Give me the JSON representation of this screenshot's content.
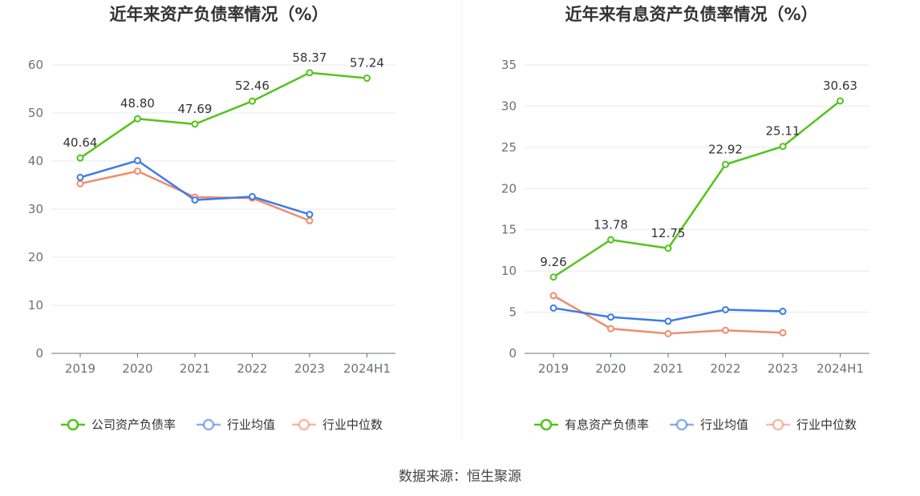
{
  "chart_data": [
    {
      "type": "line",
      "title": "近年来资产负债率情况（%）",
      "categories": [
        "2019",
        "2020",
        "2021",
        "2022",
        "2023",
        "2024H1"
      ],
      "ylim": [
        0,
        60
      ],
      "yticks": [
        0,
        10,
        20,
        30,
        40,
        50,
        60
      ],
      "grid": true,
      "legend_position": "bottom",
      "series": [
        {
          "name": "公司资产负债率",
          "color": "#52c41a",
          "values": [
            40.64,
            48.8,
            47.69,
            52.46,
            58.37,
            57.24
          ],
          "labels": [
            "40.64",
            "48.80",
            "47.69",
            "52.46",
            "58.37",
            "57.24"
          ]
        },
        {
          "name": "行业均值",
          "color": "#3d7be6",
          "values": [
            36.6,
            40.1,
            31.9,
            32.6,
            28.9,
            null
          ]
        },
        {
          "name": "行业中位数",
          "color": "#f08c6c",
          "values": [
            35.3,
            37.9,
            32.5,
            32.3,
            27.6,
            null
          ]
        }
      ]
    },
    {
      "type": "line",
      "title": "近年来有息资产负债率情况（%）",
      "categories": [
        "2019",
        "2020",
        "2021",
        "2022",
        "2023",
        "2024H1"
      ],
      "ylim": [
        0,
        35
      ],
      "yticks": [
        0,
        5,
        10,
        15,
        20,
        25,
        30,
        35
      ],
      "grid": true,
      "legend_position": "bottom",
      "series": [
        {
          "name": "有息资产负债率",
          "color": "#52c41a",
          "values": [
            9.26,
            13.78,
            12.75,
            22.92,
            25.11,
            30.63
          ],
          "labels": [
            "9.26",
            "13.78",
            "12.75",
            "22.92",
            "25.11",
            "30.63"
          ]
        },
        {
          "name": "行业均值",
          "color": "#3d7be6",
          "values": [
            5.5,
            4.4,
            3.9,
            5.3,
            5.1,
            null
          ]
        },
        {
          "name": "行业中位数",
          "color": "#f08c6c",
          "values": [
            7.0,
            3.0,
            2.4,
            2.8,
            2.5,
            null
          ]
        }
      ]
    }
  ],
  "footer": {
    "source": "数据来源：恒生聚源"
  }
}
